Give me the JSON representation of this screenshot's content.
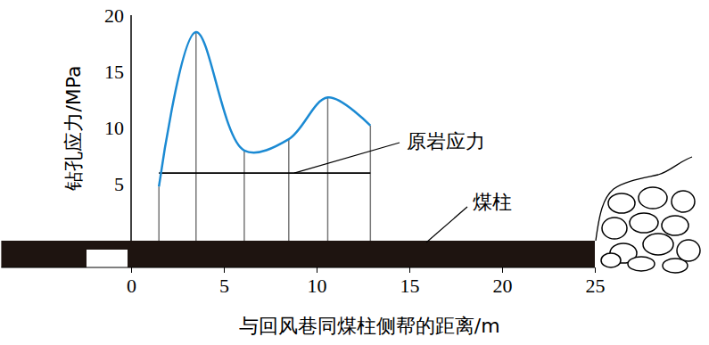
{
  "chart_data": {
    "type": "line",
    "x": [
      1.5,
      3.5,
      6.1,
      8.5,
      10.6,
      12.9
    ],
    "values": [
      4.8,
      18.5,
      8.0,
      9.0,
      12.7,
      10.2
    ],
    "color": "#1b8ad3",
    "xlabel": "与回风巷同煤柱侧帮的距离/m",
    "ylabel": "钻孔应力/MPa",
    "xlim": [
      -7,
      25
    ],
    "ylim": [
      0,
      20
    ],
    "xticks": [
      0,
      5,
      10,
      15,
      20,
      25
    ],
    "yticks": [
      5,
      10,
      15,
      20
    ],
    "reference_line": {
      "label": "原岩应力",
      "x": [
        1.5,
        12.9
      ],
      "values": [
        6,
        6
      ]
    },
    "annotations": [
      {
        "text": "煤柱"
      }
    ]
  }
}
